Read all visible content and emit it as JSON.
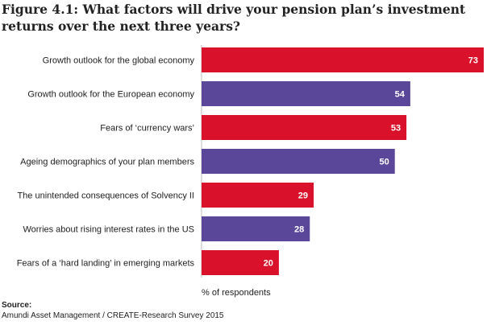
{
  "title": "Figure 4.1: What factors will drive your pension plan’s investment returns over the next three years?",
  "chart_data": {
    "type": "bar",
    "orientation": "horizontal",
    "categories": [
      "Growth outlook for the global economy",
      "Growth outlook for the European economy",
      "Fears of ‘currency wars’",
      "Ageing demographics of your plan members",
      "The unintended consequences of Solvency II",
      "Worries about rising interest rates in the US",
      "Fears of a ‘hard landing’ in emerging markets"
    ],
    "values": [
      73,
      54,
      53,
      50,
      29,
      28,
      20
    ],
    "colors": [
      "#d9112a",
      "#5a4799",
      "#d9112a",
      "#5a4799",
      "#d9112a",
      "#5a4799",
      "#d9112a"
    ],
    "xlabel": "% of respondents",
    "xlim": [
      0,
      73
    ],
    "grid": false,
    "data_labels": true
  },
  "source": {
    "heading": "Source:",
    "text": "Amundi Asset Management / CREATE-Research Survey 2015"
  }
}
